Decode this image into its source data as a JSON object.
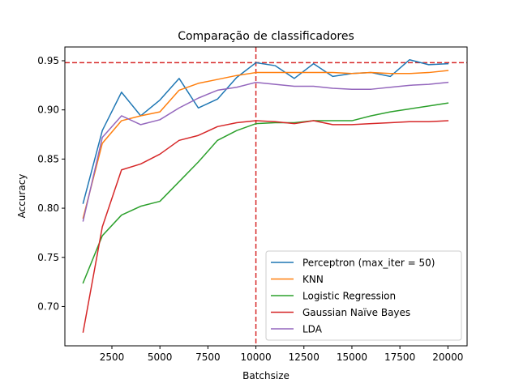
{
  "chart_data": {
    "type": "line",
    "title": "Comparação de classificadores",
    "xlabel": "Batchsize",
    "ylabel": "Accuracy",
    "xlim": [
      50,
      21000
    ],
    "ylim": [
      0.66,
      0.964
    ],
    "x_ticks": [
      2500,
      5000,
      7500,
      10000,
      12500,
      15000,
      17500,
      20000
    ],
    "x_tick_labels": [
      "2500",
      "5000",
      "7500",
      "10000",
      "12500",
      "15000",
      "17500",
      "20000"
    ],
    "y_ticks": [
      0.7,
      0.75,
      0.8,
      0.85,
      0.9,
      0.95
    ],
    "y_tick_labels": [
      "0.70",
      "0.75",
      "0.80",
      "0.85",
      "0.90",
      "0.95"
    ],
    "grid": false,
    "legend_position": "lower-right",
    "x": [
      1000,
      2000,
      3000,
      4000,
      5000,
      6000,
      7000,
      8000,
      9000,
      10000,
      11000,
      12000,
      13000,
      14000,
      15000,
      16000,
      17000,
      18000,
      19000,
      20000
    ],
    "series": [
      {
        "name": "Perceptron (max_iter = 50)",
        "color": "#1f77b4",
        "values": [
          0.805,
          0.879,
          0.918,
          0.894,
          0.91,
          0.932,
          0.902,
          0.911,
          0.933,
          0.948,
          0.945,
          0.932,
          0.947,
          0.934,
          0.937,
          0.938,
          0.934,
          0.951,
          0.946,
          0.947
        ]
      },
      {
        "name": "KNN",
        "color": "#ff7f0e",
        "values": [
          0.79,
          0.866,
          0.889,
          0.894,
          0.898,
          0.92,
          0.927,
          0.931,
          0.935,
          0.938,
          0.938,
          0.938,
          0.938,
          0.938,
          0.937,
          0.938,
          0.937,
          0.937,
          0.938,
          0.94
        ]
      },
      {
        "name": "Logistic Regression",
        "color": "#2ca02c",
        "values": [
          0.724,
          0.772,
          0.793,
          0.802,
          0.807,
          0.827,
          0.847,
          0.869,
          0.879,
          0.886,
          0.887,
          0.887,
          0.889,
          0.889,
          0.889,
          0.894,
          0.898,
          0.901,
          0.904,
          0.907
        ]
      },
      {
        "name": "Gaussian Naïve Bayes",
        "color": "#d62728",
        "values": [
          0.674,
          0.781,
          0.839,
          0.845,
          0.855,
          0.869,
          0.874,
          0.883,
          0.887,
          0.889,
          0.888,
          0.886,
          0.889,
          0.885,
          0.885,
          0.886,
          0.887,
          0.888,
          0.888,
          0.889
        ]
      },
      {
        "name": "LDA",
        "color": "#9467bd",
        "values": [
          0.787,
          0.872,
          0.894,
          0.885,
          0.89,
          0.902,
          0.912,
          0.92,
          0.923,
          0.928,
          0.926,
          0.924,
          0.924,
          0.922,
          0.921,
          0.921,
          0.923,
          0.925,
          0.926,
          0.928
        ]
      }
    ],
    "reference_lines": {
      "color": "#d62728",
      "style": "dashed",
      "vertical_x": 10000,
      "horizontal_y": 0.948
    }
  }
}
